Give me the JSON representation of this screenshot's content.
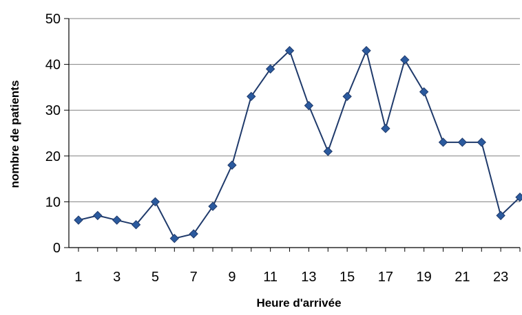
{
  "chart_data": {
    "type": "line",
    "title": "",
    "xlabel": "Heure d'arrivée",
    "ylabel": "nombre de patients",
    "x": [
      1,
      2,
      3,
      4,
      5,
      6,
      7,
      8,
      9,
      10,
      11,
      12,
      13,
      14,
      15,
      16,
      17,
      18,
      19,
      20,
      21,
      22,
      23,
      24
    ],
    "x_tick_labels": [
      "1",
      "3",
      "5",
      "7",
      "9",
      "11",
      "13",
      "15",
      "17",
      "19",
      "21",
      "23"
    ],
    "y_tick_labels": [
      "0",
      "10",
      "20",
      "30",
      "40",
      "50"
    ],
    "ylim": [
      0,
      50
    ],
    "xlim": [
      0.5,
      24
    ],
    "grid": "horizontal",
    "legend": "none",
    "series": [
      {
        "values": [
          6,
          7,
          6,
          5,
          10,
          2,
          3,
          9,
          18,
          33,
          39,
          43,
          31,
          21,
          33,
          43,
          26,
          41,
          34,
          23,
          23,
          23,
          7,
          11
        ]
      }
    ],
    "colors": {
      "line": "#1F3A6B",
      "marker": "#2B5A9E",
      "grid": "#808080",
      "axis": "#000000"
    },
    "marker": "diamond"
  }
}
